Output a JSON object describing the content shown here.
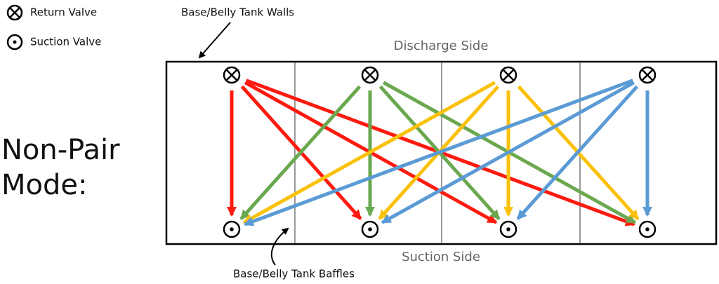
{
  "legend": {
    "return_valve": "Return Valve",
    "suction_valve": "Suction Valve"
  },
  "annotations": {
    "tank_walls": "Base/Belly Tank Walls",
    "tank_baffles": "Base/Belly Tank Baffles"
  },
  "mode_label": {
    "lines": [
      "Non-Pair",
      "Mode:"
    ]
  },
  "tank": {
    "top_label": "Discharge Side",
    "bottom_label": "Suction Side"
  }
}
